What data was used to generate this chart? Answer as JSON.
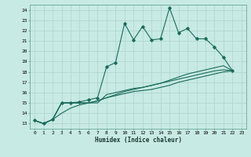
{
  "xlabel": "Humidex (Indice chaleur)",
  "bg_color": "#c8eae4",
  "grid_major_color": "#b0d8d0",
  "grid_minor_color": "#b0d8d0",
  "line_color": "#1a6b5a",
  "xlim": [
    -0.5,
    23.5
  ],
  "ylim": [
    12.5,
    24.5
  ],
  "xticks": [
    0,
    1,
    2,
    3,
    4,
    5,
    6,
    7,
    8,
    9,
    10,
    11,
    12,
    13,
    14,
    15,
    16,
    17,
    18,
    19,
    20,
    21,
    22,
    23
  ],
  "yticks": [
    13,
    14,
    15,
    16,
    17,
    18,
    19,
    20,
    21,
    22,
    23,
    24
  ],
  "series": [
    {
      "x": [
        0,
        1,
        2,
        3,
        4,
        5,
        6,
        7,
        8,
        9,
        10,
        11,
        12,
        13,
        14,
        15,
        16,
        17,
        18,
        19,
        20,
        21,
        22
      ],
      "y": [
        13.3,
        13.0,
        13.4,
        15.0,
        15.0,
        15.1,
        15.3,
        15.5,
        18.5,
        18.9,
        22.7,
        21.1,
        22.4,
        21.1,
        21.2,
        24.2,
        21.8,
        22.2,
        21.2,
        21.2,
        20.4,
        19.4,
        18.1
      ],
      "marker": true
    },
    {
      "x": [
        0,
        1,
        2,
        3,
        4,
        5,
        6,
        7,
        8,
        9,
        10,
        11,
        12,
        13,
        14,
        15,
        16,
        17,
        18,
        19,
        20,
        21,
        22
      ],
      "y": [
        13.3,
        13.0,
        13.4,
        15.0,
        15.0,
        15.0,
        15.0,
        15.0,
        15.8,
        16.0,
        16.2,
        16.4,
        16.5,
        16.7,
        16.9,
        17.1,
        17.3,
        17.5,
        17.7,
        17.9,
        18.1,
        18.2,
        18.1
      ],
      "marker": false
    },
    {
      "x": [
        0,
        1,
        2,
        3,
        4,
        5,
        6,
        7,
        8,
        9,
        10,
        11,
        12,
        13,
        14,
        15,
        16,
        17,
        18,
        19,
        20,
        21,
        22
      ],
      "y": [
        13.3,
        13.0,
        13.4,
        15.0,
        15.0,
        15.0,
        15.0,
        15.2,
        15.5,
        15.8,
        16.1,
        16.3,
        16.5,
        16.7,
        16.9,
        17.2,
        17.5,
        17.8,
        18.0,
        18.2,
        18.4,
        18.6,
        18.1
      ],
      "marker": false
    },
    {
      "x": [
        0,
        1,
        2,
        3,
        4,
        5,
        6,
        7,
        8,
        9,
        10,
        11,
        12,
        13,
        14,
        15,
        16,
        17,
        18,
        19,
        20,
        21,
        22
      ],
      "y": [
        13.3,
        13.0,
        13.4,
        14.0,
        14.5,
        14.8,
        15.0,
        15.2,
        15.5,
        15.7,
        15.9,
        16.1,
        16.2,
        16.3,
        16.5,
        16.7,
        17.0,
        17.2,
        17.4,
        17.6,
        17.8,
        18.0,
        18.1
      ],
      "marker": false
    }
  ]
}
